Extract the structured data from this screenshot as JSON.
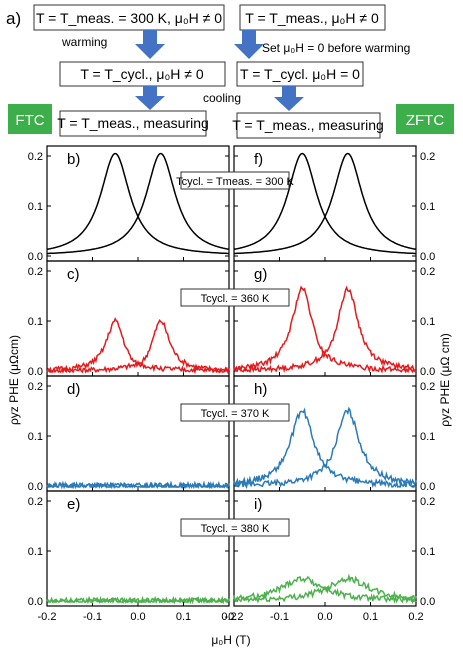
{
  "header": {
    "panel_letter": "a)",
    "left_step1": "T = T_meas. = 300 K, μ₀H ≠ 0",
    "warming": "warming",
    "left_step2": "T = T_cycl., μ₀H ≠ 0",
    "cooling": "cooling",
    "left_step3": "T = T_meas., measuring",
    "right_step1": "T = T_meas., μ₀H ≠ 0",
    "right_note": "Set μ₀H = 0 before warming",
    "right_step2": "T = T_cycl. μ₀H = 0",
    "right_step3": "T = T_meas., measuring",
    "ftc": "FTC",
    "zftc": "ZFTC"
  },
  "colors": {
    "arrow": "#4472c4",
    "badge": "#3cae4a",
    "series": [
      "#000000",
      "#e41a1c",
      "#2a7ab8",
      "#4cb04c"
    ]
  },
  "chart_data": {
    "type": "line",
    "xlabel": "μ₀H (T)",
    "ylabel_left": "ρyz PHE (μΩcm)",
    "ylabel_right": "ρyz PHE (μΩ cm)",
    "xlim": [
      -0.2,
      0.2
    ],
    "ylim": [
      -0.01,
      0.22
    ],
    "xticks": [
      "-0.2",
      "-0.1",
      "0.0",
      "0.1",
      "0.2"
    ],
    "yticks": [
      "0.0",
      "0.1",
      "0.2"
    ],
    "rows": [
      {
        "label_text": "Tcycl. = Tmeas. = 300 K",
        "ftc": {
          "letter": "b)",
          "amp1": 0.205,
          "amp2": 0.205,
          "w": 0.05,
          "dip": 0.0,
          "noise": 0.0
        },
        "zftc": {
          "letter": "f)",
          "amp1": 0.205,
          "amp2": 0.205,
          "w": 0.05,
          "dip": 0.0,
          "noise": 0.0
        }
      },
      {
        "label_text": "Tcycl. = 360 K",
        "ftc": {
          "letter": "c)",
          "amp1": 0.1,
          "amp2": 0.1,
          "w": 0.03,
          "dip": 0.06,
          "noise": 0.005
        },
        "zftc": {
          "letter": "g)",
          "amp1": 0.165,
          "amp2": 0.165,
          "w": 0.035,
          "dip": 0.03,
          "noise": 0.005
        }
      },
      {
        "label_text": "Tcycl. = 370 K",
        "ftc": {
          "letter": "d)",
          "amp1": 0.0,
          "amp2": 0.0,
          "w": 0.03,
          "dip": 0.0,
          "noise": 0.006
        },
        "zftc": {
          "letter": "h)",
          "amp1": 0.15,
          "amp2": 0.15,
          "w": 0.04,
          "dip": 0.02,
          "noise": 0.006
        }
      },
      {
        "label_text": "Tcycl. = 380 K",
        "ftc": {
          "letter": "e)",
          "amp1": 0.0,
          "amp2": 0.0,
          "w": 0.03,
          "dip": 0.0,
          "noise": 0.006
        },
        "zftc": {
          "letter": "i)",
          "amp1": 0.045,
          "amp2": 0.045,
          "w": 0.07,
          "dip": 0.0,
          "noise": 0.006
        }
      }
    ]
  }
}
